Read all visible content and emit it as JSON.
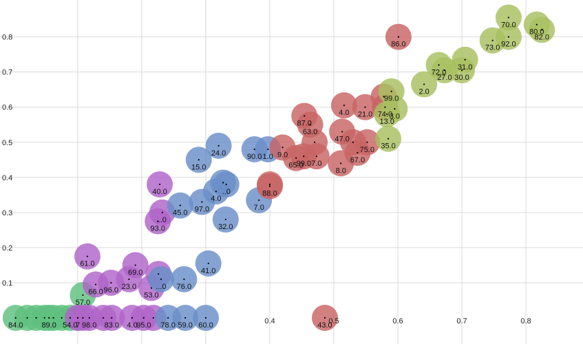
{
  "chart_data": {
    "type": "scatter",
    "title": "",
    "xlabel": "",
    "ylabel": "",
    "xlim": [
      0.0,
      0.865
    ],
    "ylim": [
      -0.02,
      0.865
    ],
    "grid": true,
    "legend": "none",
    "x_ticks": [
      "0.4",
      "0.5",
      "0.6",
      "0.7",
      "0.8"
    ],
    "y_ticks": [
      "0.1",
      "0.2",
      "0.3",
      "0.4",
      "0.5",
      "0.6",
      "0.7",
      "0.8"
    ],
    "point_shape": "large translucent circle with center dot and value label",
    "series": [
      {
        "color": "#5fbf7f",
        "points": [
          {
            "x": 0.003,
            "y": 0.0,
            "label": "84.0"
          },
          {
            "x": 0.021,
            "y": 0.0,
            "label": ""
          },
          {
            "x": 0.035,
            "y": 0.0,
            "label": ""
          },
          {
            "x": 0.048,
            "y": 0.0,
            "label": ""
          },
          {
            "x": 0.055,
            "y": 0.0,
            "label": "89.0"
          },
          {
            "x": 0.062,
            "y": 0.0,
            "label": ""
          },
          {
            "x": 0.075,
            "y": 0.0,
            "label": ""
          },
          {
            "x": 0.088,
            "y": 0.0,
            "label": "54.0"
          },
          {
            "x": 0.1,
            "y": 0.0,
            "label": ""
          },
          {
            "x": 0.108,
            "y": 0.065,
            "label": "57.0"
          }
        ]
      },
      {
        "color": "#b064c8",
        "points": [
          {
            "x": 0.1,
            "y": 0.0,
            "label": "7"
          },
          {
            "x": 0.108,
            "y": 0.0,
            "label": ""
          },
          {
            "x": 0.118,
            "y": 0.0,
            "label": "98.0"
          },
          {
            "x": 0.14,
            "y": 0.0,
            "label": ""
          },
          {
            "x": 0.153,
            "y": 0.0,
            "label": "83.0"
          },
          {
            "x": 0.185,
            "y": 0.0,
            "label": "4.0"
          },
          {
            "x": 0.203,
            "y": 0.0,
            "label": "95.0"
          },
          {
            "x": 0.218,
            "y": 0.0,
            "label": ""
          },
          {
            "x": 0.115,
            "y": 0.175,
            "label": "61.0"
          },
          {
            "x": 0.128,
            "y": 0.095,
            "label": "66.0"
          },
          {
            "x": 0.152,
            "y": 0.1,
            "label": "96.0"
          },
          {
            "x": 0.19,
            "y": 0.15,
            "label": "69.0"
          },
          {
            "x": 0.18,
            "y": 0.11,
            "label": "23.0"
          },
          {
            "x": 0.215,
            "y": 0.085,
            "label": "53.0"
          },
          {
            "x": 0.226,
            "y": 0.125,
            "label": ""
          },
          {
            "x": 0.228,
            "y": 0.38,
            "label": "40.0"
          },
          {
            "x": 0.225,
            "y": 0.275,
            "label": "93.0"
          },
          {
            "x": 0.232,
            "y": 0.3,
            "label": "..0"
          }
        ]
      },
      {
        "color": "#6a8fc8",
        "points": [
          {
            "x": 0.241,
            "y": 0.0,
            "label": "78.0"
          },
          {
            "x": 0.268,
            "y": 0.0,
            "label": "59.0"
          },
          {
            "x": 0.3,
            "y": 0.0,
            "label": "60.0"
          },
          {
            "x": 0.23,
            "y": 0.11,
            "label": "...0"
          },
          {
            "x": 0.266,
            "y": 0.11,
            "label": "76.0"
          },
          {
            "x": 0.304,
            "y": 0.155,
            "label": "41.0"
          },
          {
            "x": 0.26,
            "y": 0.32,
            "label": "45.0"
          },
          {
            "x": 0.294,
            "y": 0.33,
            "label": "97.0"
          },
          {
            "x": 0.331,
            "y": 0.28,
            "label": "32.0"
          },
          {
            "x": 0.289,
            "y": 0.45,
            "label": "15.0"
          },
          {
            "x": 0.32,
            "y": 0.49,
            "label": "24.0"
          },
          {
            "x": 0.316,
            "y": 0.36,
            "label": "4.0"
          },
          {
            "x": 0.327,
            "y": 0.385,
            "label": ""
          },
          {
            "x": 0.332,
            "y": 0.38,
            "label": "..0"
          },
          {
            "x": 0.383,
            "y": 0.335,
            "label": "7.0"
          },
          {
            "x": 0.376,
            "y": 0.48,
            "label": "90.0"
          },
          {
            "x": 0.397,
            "y": 0.48,
            "label": "1.0"
          }
        ]
      },
      {
        "color": "#c86464",
        "points": [
          {
            "x": 0.486,
            "y": 0.0,
            "label": "43.0"
          },
          {
            "x": 0.601,
            "y": 0.8,
            "label": "86.0"
          },
          {
            "x": 0.4,
            "y": 0.38,
            "label": ""
          },
          {
            "x": 0.4,
            "y": 0.375,
            "label": "88.0"
          },
          {
            "x": 0.42,
            "y": 0.485,
            "label": "9.0"
          },
          {
            "x": 0.441,
            "y": 0.455,
            "label": "65.0"
          },
          {
            "x": 0.453,
            "y": 0.46,
            "label": "99.0"
          },
          {
            "x": 0.454,
            "y": 0.575,
            "label": "87.0"
          },
          {
            "x": 0.463,
            "y": 0.55,
            "label": "63.0"
          },
          {
            "x": 0.47,
            "y": 0.5,
            "label": ""
          },
          {
            "x": 0.473,
            "y": 0.46,
            "label": "7.0"
          },
          {
            "x": 0.511,
            "y": 0.44,
            "label": "8.0"
          },
          {
            "x": 0.513,
            "y": 0.53,
            "label": "47.0"
          },
          {
            "x": 0.516,
            "y": 0.605,
            "label": "4.0"
          },
          {
            "x": 0.53,
            "y": 0.5,
            "label": ""
          },
          {
            "x": 0.537,
            "y": 0.47,
            "label": "67.0"
          },
          {
            "x": 0.549,
            "y": 0.6,
            "label": "21.0"
          },
          {
            "x": 0.552,
            "y": 0.5,
            "label": "75.0"
          },
          {
            "x": 0.578,
            "y": 0.63,
            "label": ""
          },
          {
            "x": 0.58,
            "y": 0.6,
            "label": "74.0"
          }
        ]
      },
      {
        "color": "#a8c060",
        "points": [
          {
            "x": 0.585,
            "y": 0.51,
            "label": "35.0"
          },
          {
            "x": 0.583,
            "y": 0.58,
            "label": "13.0"
          },
          {
            "x": 0.595,
            "y": 0.595,
            "label": "3.0"
          },
          {
            "x": 0.59,
            "y": 0.645,
            "label": "99.0"
          },
          {
            "x": 0.641,
            "y": 0.665,
            "label": "2.0"
          },
          {
            "x": 0.664,
            "y": 0.72,
            "label": "72.0"
          },
          {
            "x": 0.673,
            "y": 0.705,
            "label": "27.0"
          },
          {
            "x": 0.7,
            "y": 0.705,
            "label": "30.0"
          },
          {
            "x": 0.705,
            "y": 0.735,
            "label": "31.0"
          },
          {
            "x": 0.748,
            "y": 0.79,
            "label": "73.0"
          },
          {
            "x": 0.773,
            "y": 0.855,
            "label": "70.0"
          },
          {
            "x": 0.773,
            "y": 0.8,
            "label": "92.0"
          },
          {
            "x": 0.817,
            "y": 0.835,
            "label": "80.0"
          },
          {
            "x": 0.825,
            "y": 0.82,
            "label": "82.0"
          }
        ]
      }
    ]
  }
}
